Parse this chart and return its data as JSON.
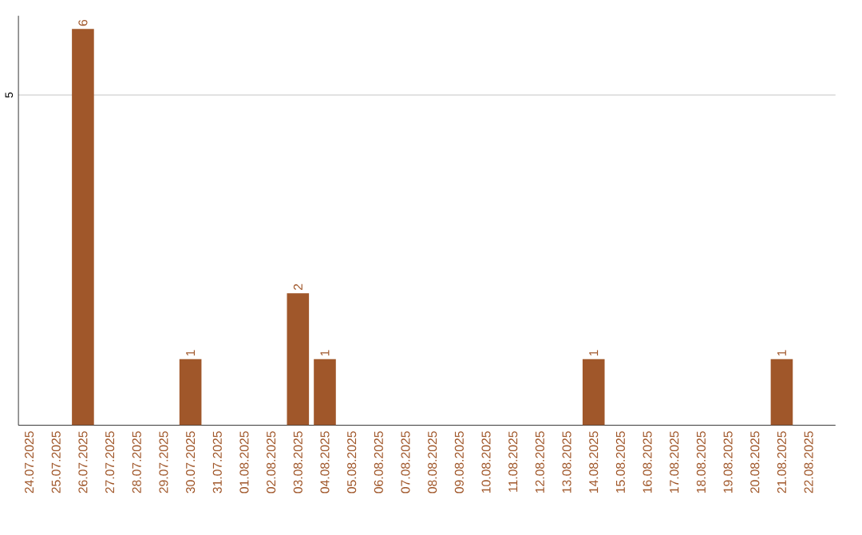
{
  "chart_data": {
    "type": "bar",
    "categories": [
      "24.07.2025",
      "25.07.2025",
      "26.07.2025",
      "27.07.2025",
      "28.07.2025",
      "29.07.2025",
      "30.07.2025",
      "31.07.2025",
      "01.08.2025",
      "02.08.2025",
      "03.08.2025",
      "04.08.2025",
      "05.08.2025",
      "06.08.2025",
      "07.08.2025",
      "08.08.2025",
      "09.08.2025",
      "10.08.2025",
      "11.08.2025",
      "12.08.2025",
      "13.08.2025",
      "14.08.2025",
      "15.08.2025",
      "16.08.2025",
      "17.08.2025",
      "18.08.2025",
      "19.08.2025",
      "20.08.2025",
      "21.08.2025",
      "22.08.2025"
    ],
    "values": [
      0,
      0,
      6,
      0,
      0,
      0,
      1,
      0,
      0,
      0,
      2,
      1,
      0,
      0,
      0,
      0,
      0,
      0,
      0,
      0,
      0,
      1,
      0,
      0,
      0,
      0,
      0,
      0,
      1,
      0
    ],
    "value_labels": [
      null,
      null,
      "6",
      null,
      null,
      null,
      "1",
      null,
      null,
      null,
      "2",
      "1",
      null,
      null,
      null,
      null,
      null,
      null,
      null,
      null,
      null,
      "1",
      null,
      null,
      null,
      null,
      null,
      null,
      "1",
      null
    ],
    "color": "#a0572a",
    "ylim": [
      0,
      6.2
    ],
    "yticks": [
      5
    ],
    "grid": "y"
  }
}
